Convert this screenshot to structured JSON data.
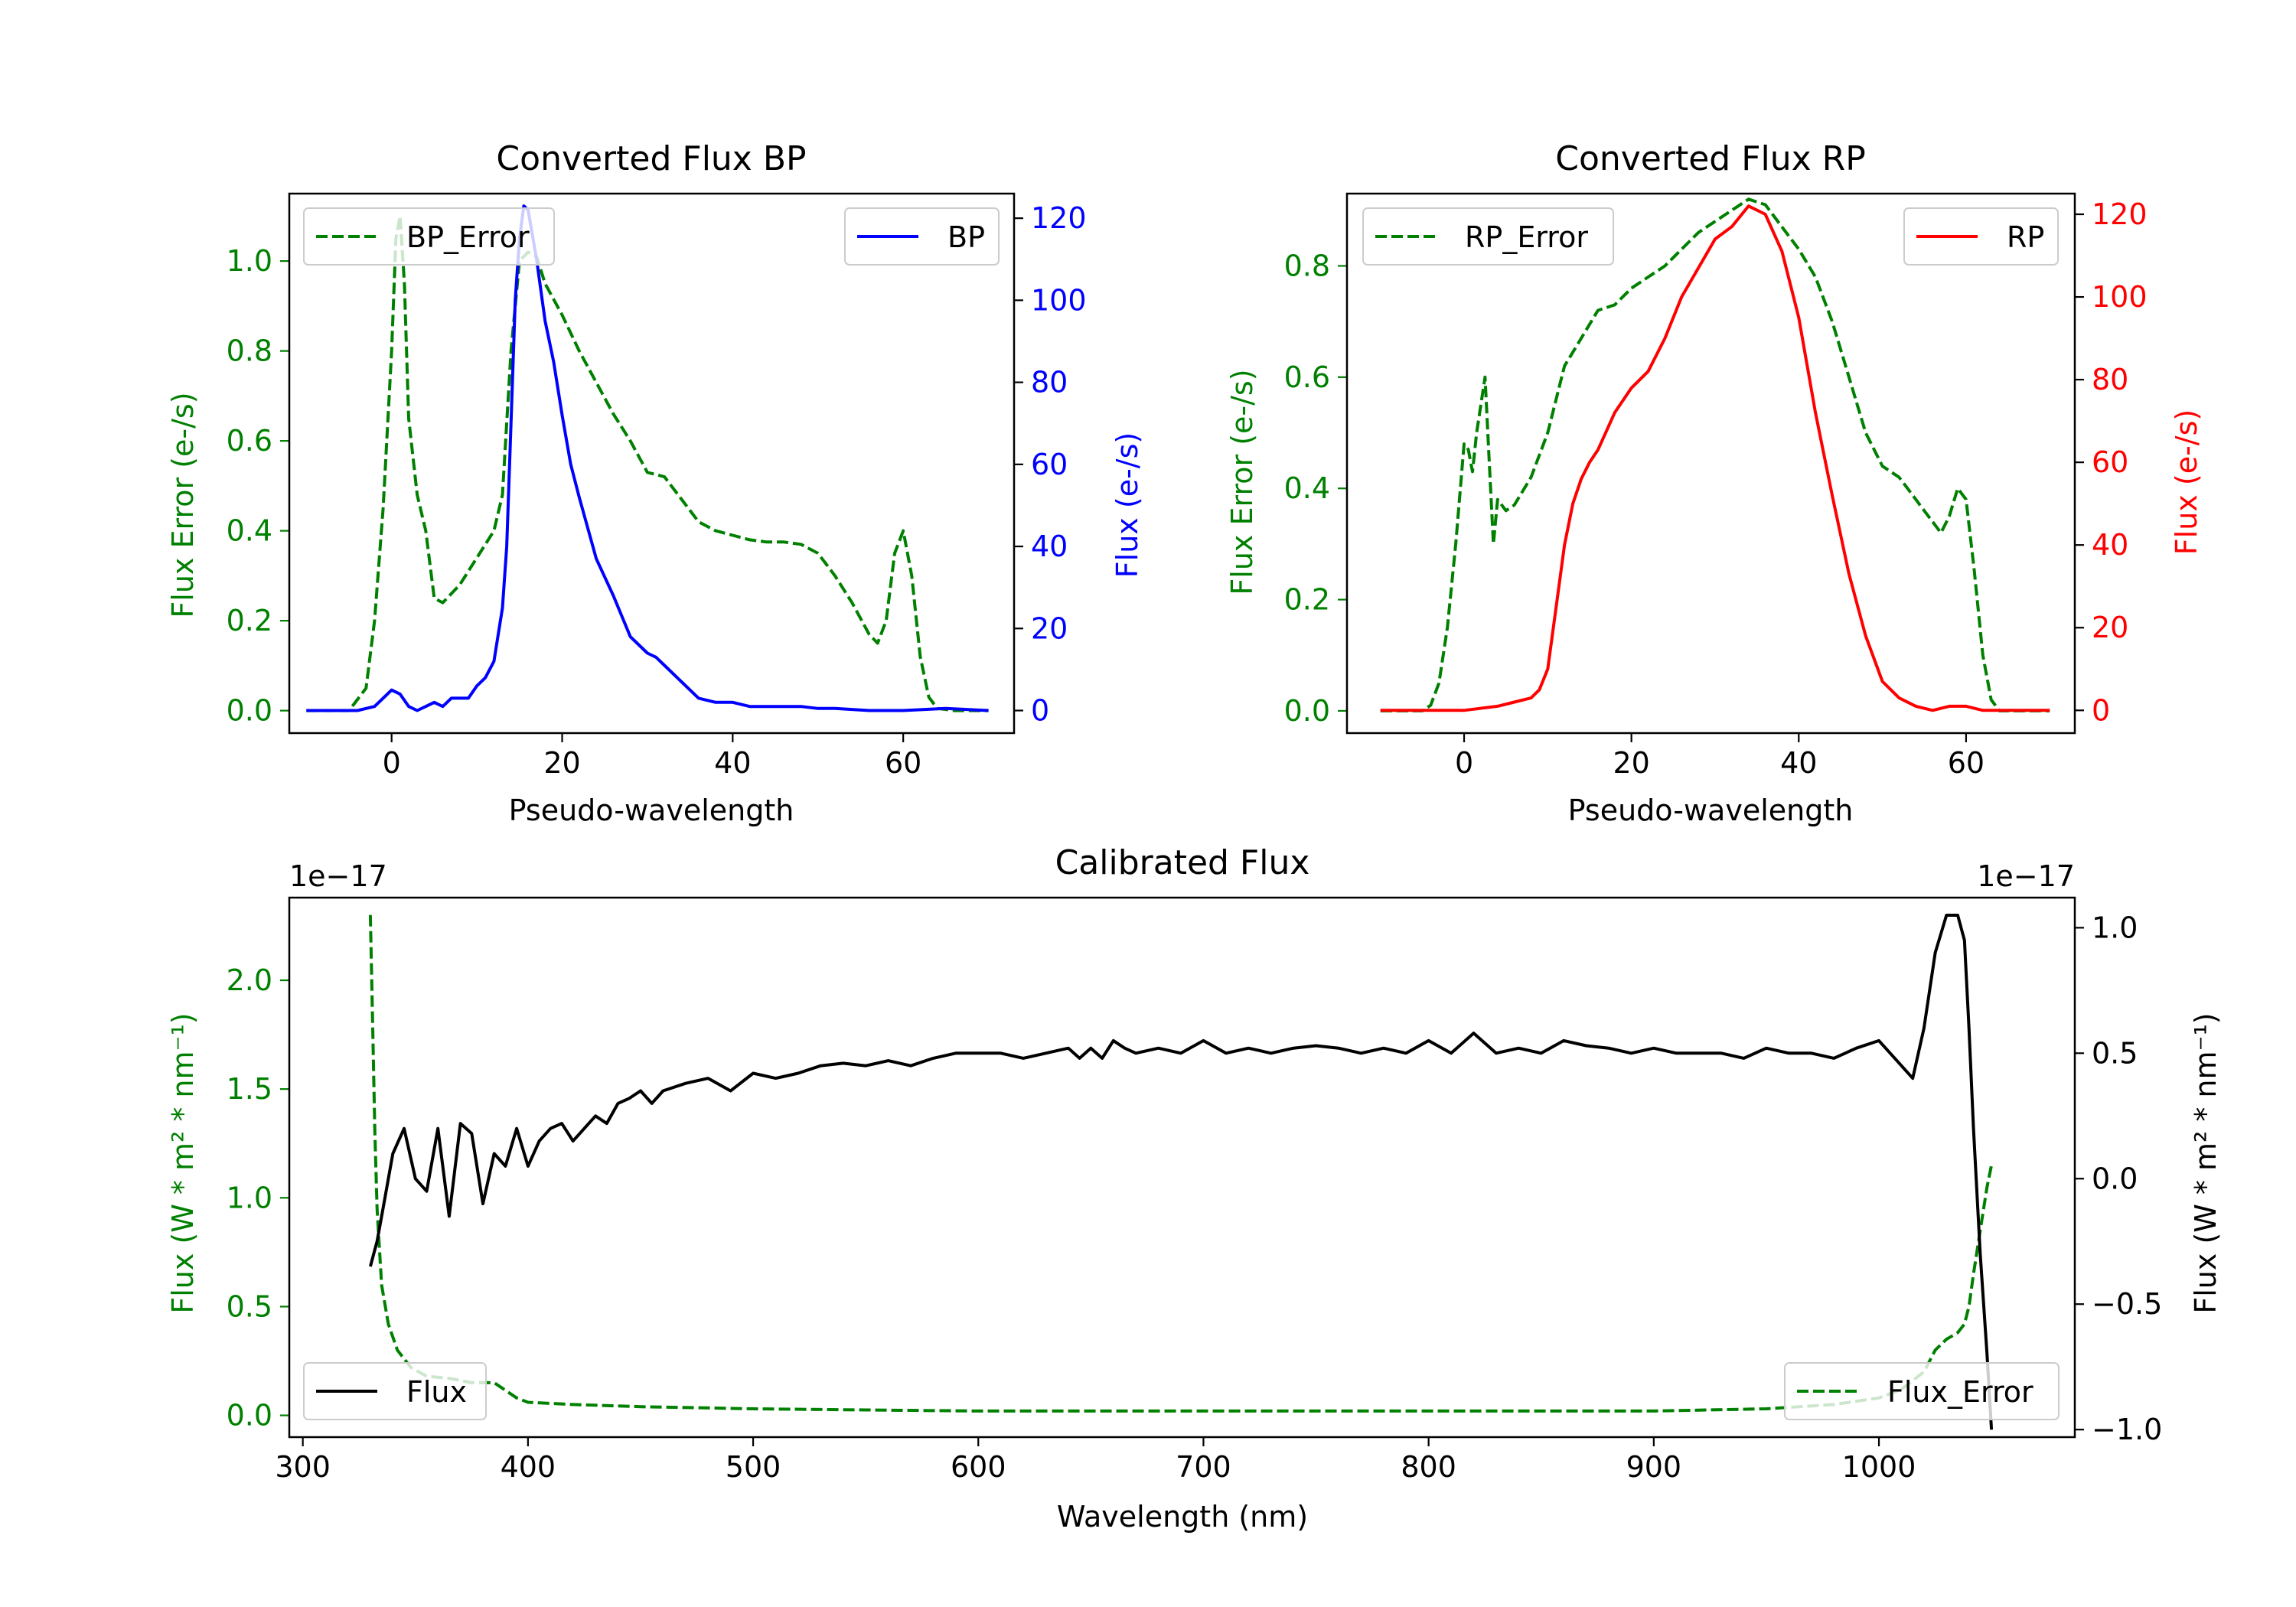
{
  "colors": {
    "error": "#008000",
    "bp": "#0000ff",
    "rp": "#ff0000",
    "flux": "#000000",
    "frame": "#000000"
  },
  "chart_data": [
    {
      "id": "bp",
      "type": "line",
      "title": "Converted Flux BP",
      "xlabel": "Pseudo-wavelength",
      "ylabel_left": "Flux Error (e-/s)",
      "ylabel_right": "Flux (e-/s)",
      "xlim": [
        -12,
        73
      ],
      "ylim_left": [
        -0.05,
        1.15
      ],
      "ylim_right": [
        -5.5,
        126
      ],
      "xticks": [
        0,
        20,
        40,
        60
      ],
      "yticks_left": [
        0.0,
        0.2,
        0.4,
        0.6,
        0.8,
        1.0
      ],
      "yticks_right": [
        0,
        20,
        40,
        60,
        80,
        100,
        120
      ],
      "xtick_labels": [
        "0",
        "20",
        "40",
        "60"
      ],
      "ytick_labels_left": [
        "0.0",
        "0.2",
        "0.4",
        "0.6",
        "0.8",
        "1.0"
      ],
      "ytick_labels_right": [
        "0",
        "20",
        "40",
        "60",
        "80",
        "100",
        "120"
      ],
      "legend_left": {
        "label": "BP_Error",
        "position": "upper left"
      },
      "legend_right": {
        "label": "BP",
        "position": "upper right"
      },
      "series": [
        {
          "name": "BP_Error",
          "axis": "left",
          "style": "dashed",
          "color": "#008000",
          "x": [
            -10,
            -5,
            -3,
            -2,
            -1,
            0,
            0.5,
            1,
            1.5,
            2,
            3,
            4,
            5,
            6,
            8,
            10,
            12,
            13,
            14,
            15,
            16,
            17,
            18,
            20,
            22,
            24,
            26,
            28,
            30,
            32,
            34,
            36,
            38,
            40,
            42,
            44,
            46,
            48,
            50,
            52,
            54,
            56,
            57,
            58,
            59,
            60,
            61,
            62,
            63,
            64,
            66,
            68,
            70
          ],
          "y": [
            0.0,
            0.0,
            0.05,
            0.2,
            0.45,
            0.8,
            1.05,
            1.1,
            0.95,
            0.65,
            0.48,
            0.4,
            0.25,
            0.24,
            0.28,
            0.34,
            0.4,
            0.48,
            0.8,
            1.0,
            1.02,
            1.01,
            0.95,
            0.88,
            0.8,
            0.73,
            0.66,
            0.6,
            0.53,
            0.52,
            0.47,
            0.42,
            0.4,
            0.39,
            0.38,
            0.375,
            0.375,
            0.37,
            0.35,
            0.3,
            0.24,
            0.17,
            0.15,
            0.2,
            0.35,
            0.4,
            0.3,
            0.12,
            0.03,
            0.005,
            0.0,
            0.0,
            0.0
          ]
        },
        {
          "name": "BP",
          "axis": "right",
          "style": "solid",
          "color": "#0000ff",
          "x": [
            -10,
            -4,
            -2,
            0,
            1,
            2,
            3,
            4,
            5,
            6,
            7,
            8,
            9,
            10,
            11,
            12,
            13,
            13.5,
            14,
            14.5,
            15,
            15.5,
            16,
            17,
            18,
            19,
            20,
            21,
            22,
            24,
            26,
            28,
            30,
            31,
            32,
            34,
            36,
            38,
            40,
            42,
            44,
            46,
            48,
            50,
            52,
            56,
            60,
            65,
            70
          ],
          "y": [
            0,
            0,
            1,
            5,
            4,
            1,
            0,
            1,
            2,
            1,
            3,
            3,
            3,
            6,
            8,
            12,
            25,
            40,
            70,
            100,
            115,
            123,
            122,
            110,
            95,
            85,
            72,
            60,
            52,
            37,
            28,
            18,
            14,
            13,
            11,
            7,
            3,
            2,
            2,
            1,
            1,
            1,
            1,
            0.5,
            0.5,
            0,
            0,
            0.5,
            0
          ]
        }
      ]
    },
    {
      "id": "rp",
      "type": "line",
      "title": "Converted Flux RP",
      "xlabel": "Pseudo-wavelength",
      "ylabel_left": "Flux Error (e-/s)",
      "ylabel_right": "Flux (e-/s)",
      "xlim": [
        -14,
        73
      ],
      "ylim_left": [
        -0.04,
        0.93
      ],
      "ylim_right": [
        -5.5,
        125
      ],
      "xticks": [
        0,
        20,
        40,
        60
      ],
      "yticks_left": [
        0.0,
        0.2,
        0.4,
        0.6,
        0.8
      ],
      "yticks_right": [
        0,
        20,
        40,
        60,
        80,
        100,
        120
      ],
      "xtick_labels": [
        "0",
        "20",
        "40",
        "60"
      ],
      "ytick_labels_left": [
        "0.0",
        "0.2",
        "0.4",
        "0.6",
        "0.8"
      ],
      "ytick_labels_right": [
        "0",
        "20",
        "40",
        "60",
        "80",
        "100",
        "120"
      ],
      "legend_left": {
        "label": "RP_Error",
        "position": "upper left"
      },
      "legend_right": {
        "label": "RP",
        "position": "upper right"
      },
      "series": [
        {
          "name": "RP_Error",
          "axis": "left",
          "style": "dashed",
          "color": "#008000",
          "x": [
            -10,
            -5,
            -4,
            -3,
            -2,
            -1,
            0,
            0.5,
            1,
            1.5,
            2,
            2.5,
            3,
            3.5,
            4,
            5,
            6,
            8,
            10,
            12,
            14,
            16,
            18,
            20,
            22,
            24,
            26,
            28,
            30,
            32,
            34,
            36,
            38,
            40,
            42,
            44,
            46,
            48,
            50,
            52,
            53,
            54,
            55,
            56,
            57,
            58,
            59,
            60,
            61,
            62,
            63,
            64,
            66,
            70
          ],
          "y": [
            0.0,
            0.0,
            0.01,
            0.05,
            0.15,
            0.3,
            0.48,
            0.47,
            0.43,
            0.5,
            0.55,
            0.6,
            0.45,
            0.3,
            0.38,
            0.36,
            0.37,
            0.42,
            0.5,
            0.62,
            0.67,
            0.72,
            0.73,
            0.76,
            0.78,
            0.8,
            0.83,
            0.86,
            0.88,
            0.9,
            0.92,
            0.91,
            0.87,
            0.83,
            0.78,
            0.7,
            0.6,
            0.5,
            0.44,
            0.42,
            0.4,
            0.38,
            0.36,
            0.34,
            0.32,
            0.35,
            0.4,
            0.38,
            0.25,
            0.1,
            0.02,
            0.0,
            0.0,
            0.0
          ]
        },
        {
          "name": "RP",
          "axis": "right",
          "style": "solid",
          "color": "#ff0000",
          "x": [
            -10,
            -4,
            0,
            4,
            6,
            8,
            9,
            10,
            11,
            12,
            13,
            14,
            15,
            16,
            18,
            20,
            22,
            24,
            26,
            28,
            30,
            32,
            34,
            36,
            38,
            40,
            42,
            44,
            46,
            48,
            50,
            52,
            54,
            56,
            58,
            60,
            62,
            70
          ],
          "y": [
            0,
            0,
            0,
            1,
            2,
            3,
            5,
            10,
            25,
            40,
            50,
            56,
            60,
            63,
            72,
            78,
            82,
            90,
            100,
            107,
            114,
            117,
            122,
            120,
            111,
            95,
            72,
            52,
            33,
            18,
            7,
            3,
            1,
            0,
            1,
            1,
            0,
            0
          ]
        }
      ]
    },
    {
      "id": "calibrated",
      "type": "line",
      "title": "Calibrated Flux",
      "xlabel": "Wavelength (nm)",
      "ylabel_left": "Flux (W * m² * nm⁻¹)",
      "ylabel_right": "Flux (W * m² * nm⁻¹)",
      "offset_left": "1e−17",
      "offset_right": "1e−17",
      "xlim": [
        294,
        1087
      ],
      "ylim_left": [
        -0.1,
        2.38
      ],
      "ylim_right": [
        -1.03,
        1.12
      ],
      "xticks": [
        300,
        400,
        500,
        600,
        700,
        800,
        900,
        1000
      ],
      "yticks_left": [
        0.0,
        0.5,
        1.0,
        1.5,
        2.0
      ],
      "yticks_right": [
        -1.0,
        -0.5,
        0.0,
        0.5,
        1.0
      ],
      "xtick_labels": [
        "300",
        "400",
        "500",
        "600",
        "700",
        "800",
        "900",
        "1000"
      ],
      "ytick_labels_left": [
        "0.0",
        "0.5",
        "1.0",
        "1.5",
        "2.0"
      ],
      "ytick_labels_right": [
        "−1.0",
        "−0.5",
        "0.0",
        "0.5",
        "1.0"
      ],
      "legend_left": {
        "label": "Flux",
        "position": "lower left"
      },
      "legend_right": {
        "label": "Flux_Error",
        "position": "lower right"
      },
      "series": [
        {
          "name": "Flux_Error",
          "axis": "left",
          "style": "dashed",
          "color": "#008000",
          "x": [
            330,
            331,
            332,
            333,
            335,
            338,
            342,
            348,
            355,
            365,
            375,
            385,
            395,
            400,
            420,
            450,
            500,
            550,
            600,
            650,
            700,
            800,
            900,
            950,
            980,
            1000,
            1010,
            1020,
            1025,
            1030,
            1035,
            1038,
            1040,
            1042,
            1045,
            1048,
            1050
          ],
          "y": [
            2.3,
            1.8,
            1.3,
            0.95,
            0.6,
            0.42,
            0.3,
            0.22,
            0.18,
            0.17,
            0.15,
            0.15,
            0.08,
            0.06,
            0.05,
            0.04,
            0.03,
            0.025,
            0.02,
            0.02,
            0.02,
            0.02,
            0.02,
            0.03,
            0.05,
            0.08,
            0.12,
            0.2,
            0.3,
            0.35,
            0.38,
            0.42,
            0.5,
            0.65,
            0.85,
            1.05,
            1.15
          ]
        },
        {
          "name": "Flux",
          "axis": "right",
          "style": "solid",
          "color": "#000000",
          "x": [
            330,
            333,
            336,
            340,
            345,
            350,
            355,
            360,
            365,
            370,
            375,
            380,
            385,
            390,
            395,
            400,
            405,
            410,
            415,
            420,
            425,
            430,
            435,
            440,
            445,
            450,
            455,
            460,
            470,
            480,
            490,
            500,
            510,
            520,
            530,
            540,
            550,
            560,
            570,
            580,
            590,
            600,
            610,
            620,
            630,
            640,
            645,
            650,
            655,
            660,
            665,
            670,
            680,
            690,
            700,
            710,
            720,
            730,
            740,
            750,
            760,
            770,
            780,
            790,
            800,
            810,
            820,
            830,
            840,
            850,
            860,
            870,
            880,
            890,
            900,
            910,
            920,
            930,
            940,
            950,
            960,
            970,
            980,
            990,
            1000,
            1010,
            1015,
            1020,
            1025,
            1030,
            1035,
            1038,
            1040,
            1042,
            1045,
            1048,
            1050
          ],
          "y": [
            -0.35,
            -0.25,
            -0.1,
            0.1,
            0.2,
            0.0,
            -0.05,
            0.2,
            -0.15,
            0.22,
            0.18,
            -0.1,
            0.1,
            0.05,
            0.2,
            0.05,
            0.15,
            0.2,
            0.22,
            0.15,
            0.2,
            0.25,
            0.22,
            0.3,
            0.32,
            0.35,
            0.3,
            0.35,
            0.38,
            0.4,
            0.35,
            0.42,
            0.4,
            0.42,
            0.45,
            0.46,
            0.45,
            0.47,
            0.45,
            0.48,
            0.5,
            0.5,
            0.5,
            0.48,
            0.5,
            0.52,
            0.48,
            0.52,
            0.48,
            0.55,
            0.52,
            0.5,
            0.52,
            0.5,
            0.55,
            0.5,
            0.52,
            0.5,
            0.52,
            0.53,
            0.52,
            0.5,
            0.52,
            0.5,
            0.55,
            0.5,
            0.58,
            0.5,
            0.52,
            0.5,
            0.55,
            0.53,
            0.52,
            0.5,
            0.52,
            0.5,
            0.5,
            0.5,
            0.48,
            0.52,
            0.5,
            0.5,
            0.48,
            0.52,
            0.55,
            0.45,
            0.4,
            0.6,
            0.9,
            1.05,
            1.05,
            0.95,
            0.6,
            0.2,
            -0.3,
            -0.7,
            -1.0
          ]
        }
      ]
    }
  ]
}
